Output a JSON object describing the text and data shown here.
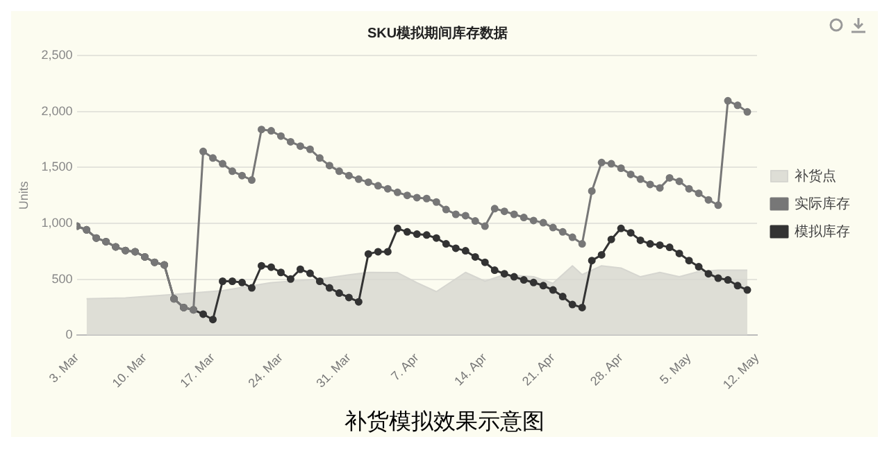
{
  "chart_data": {
    "type": "line",
    "title": "SKU模拟期间库存数据",
    "ylabel": "Units",
    "annotations": [
      "补货模拟效果示意图"
    ],
    "x": [
      "--03-03",
      "--03-04",
      "--03-05",
      "--03-06",
      "--03-07",
      "--03-08",
      "--03-09",
      "--03-10",
      "--03-11",
      "--03-12",
      "--03-13",
      "--03-14",
      "--03-15",
      "--03-16",
      "--03-17",
      "--03-18",
      "--03-19",
      "--03-20",
      "--03-21",
      "--03-22",
      "--03-23",
      "--03-24",
      "--03-25",
      "--03-26",
      "--03-27",
      "--03-28",
      "--03-29",
      "--03-30",
      "--03-31",
      "--04-01",
      "--04-02",
      "--04-03",
      "--04-04",
      "--04-05",
      "--04-06",
      "--04-07",
      "--04-08",
      "--04-09",
      "--04-10",
      "--04-11",
      "--04-12",
      "--04-13",
      "--04-14",
      "--04-15",
      "--04-16",
      "--04-17",
      "--04-18",
      "--04-19",
      "--04-20",
      "--04-21",
      "--04-22",
      "--04-23",
      "--04-24",
      "--04-25",
      "--04-26",
      "--04-27",
      "--04-28",
      "--04-29",
      "--04-30",
      "--05-01",
      "--05-02",
      "--05-03",
      "--05-04",
      "--05-05",
      "--05-06",
      "--05-07",
      "--05-08",
      "--05-09",
      "--05-10",
      "--05-11"
    ],
    "series": [
      {
        "name": "补货点",
        "type": "area",
        "marker": "none",
        "color": "#d6d6d0",
        "x": [
          "--03-04",
          "--03-08",
          "--03-13",
          "--03-18",
          "--03-23",
          "--03-28",
          "--03-31",
          "--04-02",
          "--04-05",
          "--04-07",
          "--04-09",
          "--04-12",
          "--04-14",
          "--04-16",
          "--04-19",
          "--04-21",
          "--04-23",
          "--04-24",
          "--04-26",
          "--04-28",
          "--04-30",
          "--05-02",
          "--05-04",
          "--05-06",
          "--05-08",
          "--05-11"
        ],
        "values": [
          326,
          335,
          365,
          400,
          470,
          503,
          540,
          562,
          560,
          470,
          390,
          562,
          483,
          542,
          523,
          464,
          621,
          542,
          621,
          601,
          523,
          562,
          523,
          570,
          582,
          582
        ]
      },
      {
        "name": "实际库存",
        "marker": "circle",
        "color": "#777777",
        "values": [
          975,
          943,
          869,
          837,
          790,
          758,
          747,
          700,
          652,
          629,
          326,
          248,
          228,
          1643,
          1584,
          1533,
          1466,
          1427,
          1387,
          1839,
          1827,
          1780,
          1729,
          1690,
          1662,
          1584,
          1517,
          1466,
          1427,
          1395,
          1368,
          1336,
          1309,
          1277,
          1250,
          1230,
          1222,
          1191,
          1124,
          1081,
          1069,
          1022,
          975,
          1132,
          1108,
          1081,
          1053,
          1026,
          1006,
          963,
          924,
          876,
          817,
          1289,
          1544,
          1533,
          1493,
          1438,
          1395,
          1348,
          1317,
          1407,
          1376,
          1309,
          1269,
          1210,
          1163,
          2095,
          2055,
          1996
        ]
      },
      {
        "name": "模拟库存",
        "marker": "circle",
        "color": "#333333",
        "values": [
          975,
          943,
          869,
          837,
          790,
          758,
          747,
          700,
          652,
          629,
          326,
          248,
          228,
          189,
          141,
          483,
          483,
          472,
          424,
          621,
          609,
          562,
          503,
          590,
          554,
          483,
          424,
          377,
          338,
          299,
          727,
          747,
          747,
          955,
          924,
          904,
          896,
          869,
          817,
          778,
          755,
          700,
          652,
          582,
          550,
          523,
          495,
          472,
          444,
          405,
          346,
          275,
          248,
          668,
          719,
          857,
          955,
          916,
          849,
          817,
          806,
          786,
          731,
          668,
          613,
          550,
          511,
          495,
          444,
          405
        ]
      }
    ],
    "xlim": [
      "--03-03",
      "--05-12"
    ],
    "xticks": [
      {
        "value": "--03-03",
        "label": "3. Mar"
      },
      {
        "value": "--03-10",
        "label": "10. Mar"
      },
      {
        "value": "--03-17",
        "label": "17. Mar"
      },
      {
        "value": "--03-24",
        "label": "24. Mar"
      },
      {
        "value": "--03-31",
        "label": "31. Mar"
      },
      {
        "value": "--04-07",
        "label": "7. Apr"
      },
      {
        "value": "--04-14",
        "label": "14. Apr"
      },
      {
        "value": "--04-21",
        "label": "21. Apr"
      },
      {
        "value": "--04-28",
        "label": "28. Apr"
      },
      {
        "value": "--05-05",
        "label": "5. May"
      },
      {
        "value": "--05-12",
        "label": "12. May"
      }
    ],
    "ylim": [
      0,
      2500
    ],
    "yticks": [
      0,
      500,
      {
        "value": 1000,
        "label": "1,000"
      },
      {
        "value": 1500,
        "label": "1,500"
      },
      {
        "value": 2000,
        "label": "2,000"
      },
      {
        "value": 2500,
        "label": "2,500"
      }
    ],
    "grid": "y",
    "legend": "right"
  }
}
